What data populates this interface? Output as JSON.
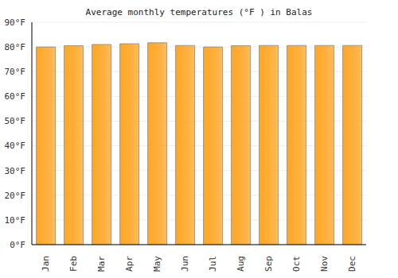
{
  "chart_data": {
    "type": "bar",
    "title": "Average monthly temperatures (°F ) in Balas",
    "categories": [
      "Jan",
      "Feb",
      "Mar",
      "Apr",
      "May",
      "Jun",
      "Jul",
      "Aug",
      "Sep",
      "Oct",
      "Nov",
      "Dec"
    ],
    "values": [
      80,
      80.5,
      81,
      81.3,
      81.7,
      80.6,
      80,
      80.5,
      80.6,
      80.6,
      80.6,
      80.6
    ],
    "color": "#ffa726",
    "ylim": [
      0,
      90
    ],
    "yticks": [
      {
        "value": 0,
        "label": "0°F"
      },
      {
        "value": 10,
        "label": "10°F"
      },
      {
        "value": 20,
        "label": "20°F"
      },
      {
        "value": 30,
        "label": "30°F"
      },
      {
        "value": 40,
        "label": "40°F"
      },
      {
        "value": 50,
        "label": "50°F"
      },
      {
        "value": 60,
        "label": "60°F"
      },
      {
        "value": 70,
        "label": "70°F"
      },
      {
        "value": 80,
        "label": "80°F"
      },
      {
        "value": 90,
        "label": "90°F"
      }
    ],
    "grid": true
  }
}
